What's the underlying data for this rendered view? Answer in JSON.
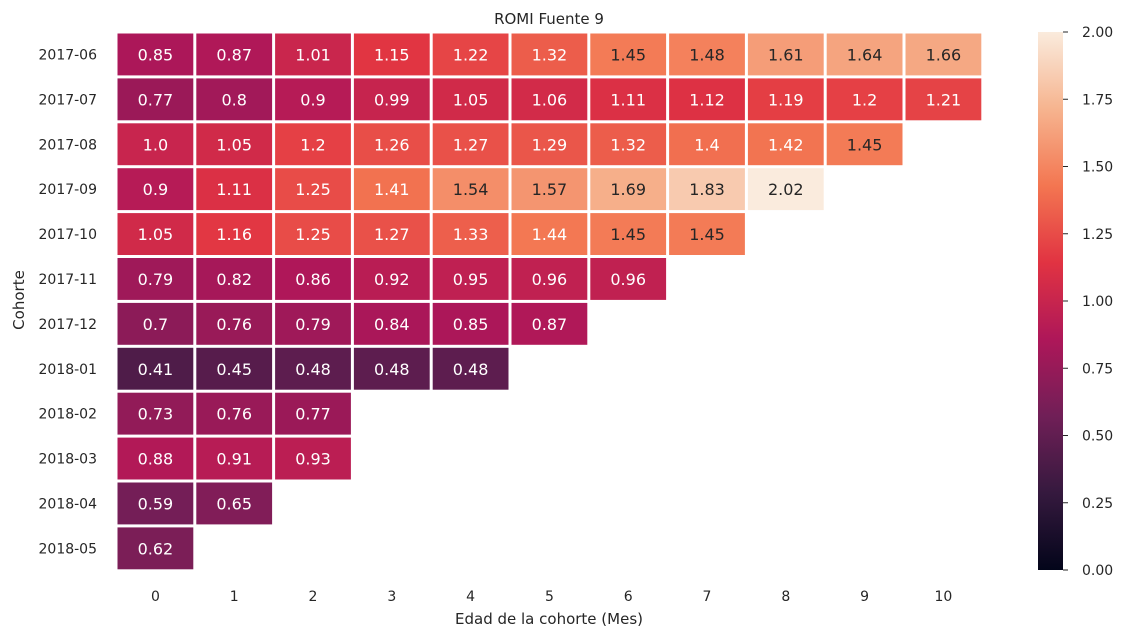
{
  "chart_data": {
    "type": "heatmap",
    "title": "ROMI Fuente 9",
    "xlabel": "Edad de la cohorte (Mes)",
    "ylabel": "Cohorte",
    "x_categories": [
      "0",
      "1",
      "2",
      "3",
      "4",
      "5",
      "6",
      "7",
      "8",
      "9",
      "10"
    ],
    "y_categories": [
      "2017-06",
      "2017-07",
      "2017-08",
      "2017-09",
      "2017-10",
      "2017-11",
      "2017-12",
      "2018-01",
      "2018-02",
      "2018-03",
      "2018-04",
      "2018-05"
    ],
    "values": [
      [
        0.85,
        0.87,
        1.01,
        1.15,
        1.22,
        1.32,
        1.45,
        1.48,
        1.61,
        1.64,
        1.66
      ],
      [
        0.77,
        0.8,
        0.9,
        0.99,
        1.05,
        1.06,
        1.11,
        1.12,
        1.19,
        1.2,
        1.21
      ],
      [
        1.0,
        1.05,
        1.2,
        1.26,
        1.27,
        1.29,
        1.32,
        1.4,
        1.42,
        1.45
      ],
      [
        0.9,
        1.11,
        1.25,
        1.41,
        1.54,
        1.57,
        1.69,
        1.83,
        2.02
      ],
      [
        1.05,
        1.16,
        1.25,
        1.27,
        1.33,
        1.44,
        1.45,
        1.45
      ],
      [
        0.79,
        0.82,
        0.86,
        0.92,
        0.95,
        0.96,
        0.96
      ],
      [
        0.7,
        0.76,
        0.79,
        0.84,
        0.85,
        0.87
      ],
      [
        0.41,
        0.45,
        0.48,
        0.48,
        0.48
      ],
      [
        0.73,
        0.76,
        0.77
      ],
      [
        0.88,
        0.91,
        0.93
      ],
      [
        0.59,
        0.65
      ],
      [
        0.62
      ]
    ],
    "value_labels": [
      [
        "0.85",
        "0.87",
        "1.01",
        "1.15",
        "1.22",
        "1.32",
        "1.45",
        "1.48",
        "1.61",
        "1.64",
        "1.66"
      ],
      [
        "0.77",
        "0.8",
        "0.9",
        "0.99",
        "1.05",
        "1.06",
        "1.11",
        "1.12",
        "1.19",
        "1.2",
        "1.21"
      ],
      [
        "1.0",
        "1.05",
        "1.2",
        "1.26",
        "1.27",
        "1.29",
        "1.32",
        "1.4",
        "1.42",
        "1.45"
      ],
      [
        "0.9",
        "1.11",
        "1.25",
        "1.41",
        "1.54",
        "1.57",
        "1.69",
        "1.83",
        "2.02"
      ],
      [
        "1.05",
        "1.16",
        "1.25",
        "1.27",
        "1.33",
        "1.44",
        "1.45",
        "1.45"
      ],
      [
        "0.79",
        "0.82",
        "0.86",
        "0.92",
        "0.95",
        "0.96",
        "0.96"
      ],
      [
        "0.7",
        "0.76",
        "0.79",
        "0.84",
        "0.85",
        "0.87"
      ],
      [
        "0.41",
        "0.45",
        "0.48",
        "0.48",
        "0.48"
      ],
      [
        "0.73",
        "0.76",
        "0.77"
      ],
      [
        "0.88",
        "0.91",
        "0.93"
      ],
      [
        "0.59",
        "0.65"
      ],
      [
        "0.62"
      ]
    ],
    "colorbar": {
      "range": [
        0.0,
        2.0
      ],
      "ticks": [
        "0.00",
        "0.25",
        "0.50",
        "0.75",
        "1.00",
        "1.25",
        "1.50",
        "1.75",
        "2.00"
      ],
      "colormap": "rocket",
      "stops": [
        "#03051a",
        "#35193e",
        "#701f57",
        "#ae1759",
        "#e13342",
        "#f37651",
        "#f6b48f",
        "#faebdd"
      ]
    },
    "grid": false
  }
}
